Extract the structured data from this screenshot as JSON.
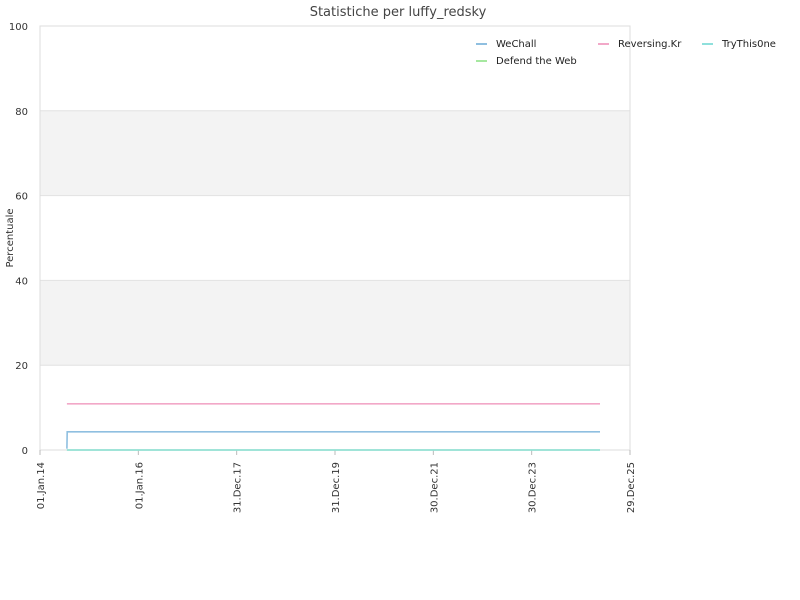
{
  "chart_data": {
    "type": "line",
    "title": "Statistiche per luffy_redsky",
    "ylabel": "Percentuale",
    "xlabel": "",
    "xlim": [
      "2014-01-01",
      "2025-12-29"
    ],
    "ylim": [
      0,
      100
    ],
    "y_ticks": [
      0,
      20,
      40,
      60,
      80,
      100
    ],
    "x_ticks": [
      "2014-01-01",
      "2016-01-01",
      "2017-12-31",
      "2019-12-31",
      "2021-12-30",
      "2023-12-30",
      "2025-12-29"
    ],
    "x_tick_labels": [
      "01.Jan.14",
      "01.Jan.16",
      "31.Dec.17",
      "31.Dec.19",
      "30.Dec.21",
      "30.Dec.23",
      "29.Dec.25"
    ],
    "grid": true,
    "alternating_bands": true,
    "legend_position": "top-right",
    "series": [
      {
        "name": "WeChall",
        "color": "#8fbfe0",
        "points": [
          [
            "2014-07-20",
            0.3
          ],
          [
            "2014-07-22",
            4.3
          ],
          [
            "2025-05-20",
            4.3
          ]
        ]
      },
      {
        "name": "Defend the Web",
        "color": "#a6e8a0",
        "points": [
          [
            "2014-07-20",
            0.0
          ],
          [
            "2025-05-20",
            0.0
          ]
        ]
      },
      {
        "name": "Reversing.Kr",
        "color": "#f2a8c8",
        "points": [
          [
            "2014-07-20",
            10.9
          ],
          [
            "2025-05-20",
            10.9
          ]
        ]
      },
      {
        "name": "TryThis0ne",
        "color": "#8fe0dc",
        "points": [
          [
            "2014-07-20",
            0.0
          ],
          [
            "2025-05-20",
            0.0
          ]
        ]
      }
    ]
  }
}
